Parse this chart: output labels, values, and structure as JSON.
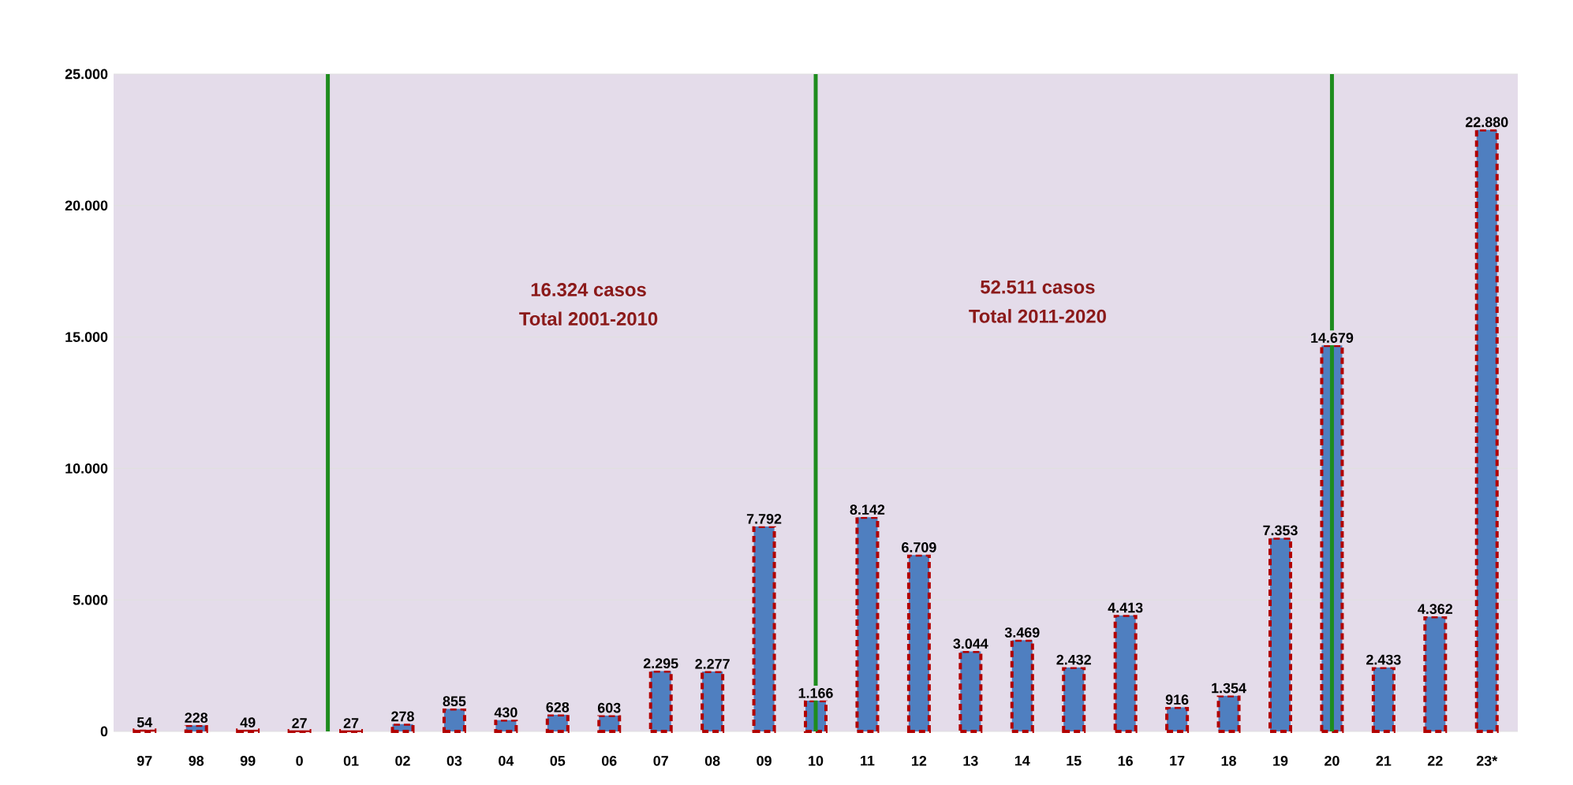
{
  "chart_data": {
    "type": "bar",
    "categories": [
      "97",
      "98",
      "99",
      "0",
      "01",
      "02",
      "03",
      "04",
      "05",
      "06",
      "07",
      "08",
      "09",
      "10",
      "11",
      "12",
      "13",
      "14",
      "15",
      "16",
      "17",
      "18",
      "19",
      "20",
      "21",
      "22",
      "23*"
    ],
    "values": [
      54,
      228,
      49,
      27,
      27,
      278,
      855,
      430,
      628,
      603,
      2295,
      2277,
      7792,
      1166,
      8142,
      6709,
      3044,
      3469,
      2432,
      4413,
      916,
      1354,
      7353,
      14679,
      2433,
      4362,
      22880
    ],
    "value_labels": [
      "54",
      "228",
      "49",
      "27",
      "27",
      "278",
      "855",
      "430",
      "628",
      "603",
      "2.295",
      "2.277",
      "7.792",
      "1.166",
      "8.142",
      "6.709",
      "3.044",
      "3.469",
      "2.432",
      "4.413",
      "916",
      "1.354",
      "7.353",
      "14.679",
      "2.433",
      "4.362",
      "22.880"
    ],
    "color": "#4f7fc0",
    "ylim": [
      0,
      25000
    ],
    "yticks": [
      {
        "value": 0,
        "label": "0"
      },
      {
        "value": 5000,
        "label": "5.000"
      },
      {
        "value": 10000,
        "label": "10.000"
      },
      {
        "value": 15000,
        "label": "15.000"
      },
      {
        "value": 20000,
        "label": "20.000"
      },
      {
        "value": 25000,
        "label": "25.000"
      }
    ],
    "grid": "y",
    "ref_lines": [
      {
        "axis": "x",
        "value": "10",
        "color": "#1e8c1e"
      },
      {
        "axis": "x",
        "value": "20",
        "color": "#1e8c1e"
      }
    ],
    "annotations": [
      "16.324 casos",
      "Total 2001-2010",
      "52.511 casos",
      "Total 2011-2020"
    ]
  }
}
